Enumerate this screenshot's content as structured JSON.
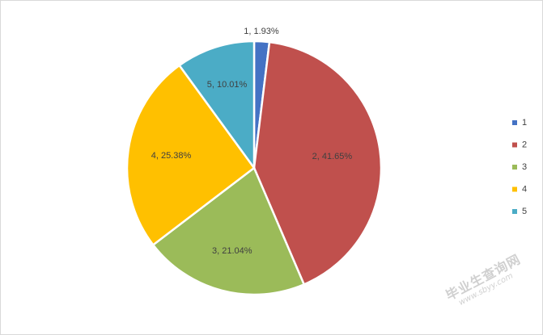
{
  "chart_data": {
    "type": "pie",
    "categories": [
      "1",
      "2",
      "3",
      "4",
      "5"
    ],
    "values": [
      1.93,
      41.65,
      21.04,
      25.38,
      10.01
    ],
    "data_labels": [
      "1, 1.93%",
      "2, 41.65%",
      "3, 21.04%",
      "4, 25.38%",
      "5, 10.01%"
    ],
    "colors": [
      "#4472C4",
      "#C0504D",
      "#9BBB59",
      "#FFC000",
      "#4BACC6"
    ],
    "title": "",
    "legend_position": "right",
    "start": "top",
    "direction": "clockwise"
  },
  "watermark": {
    "line1": "毕业生查询网",
    "line2": "www.sbyy.com"
  }
}
